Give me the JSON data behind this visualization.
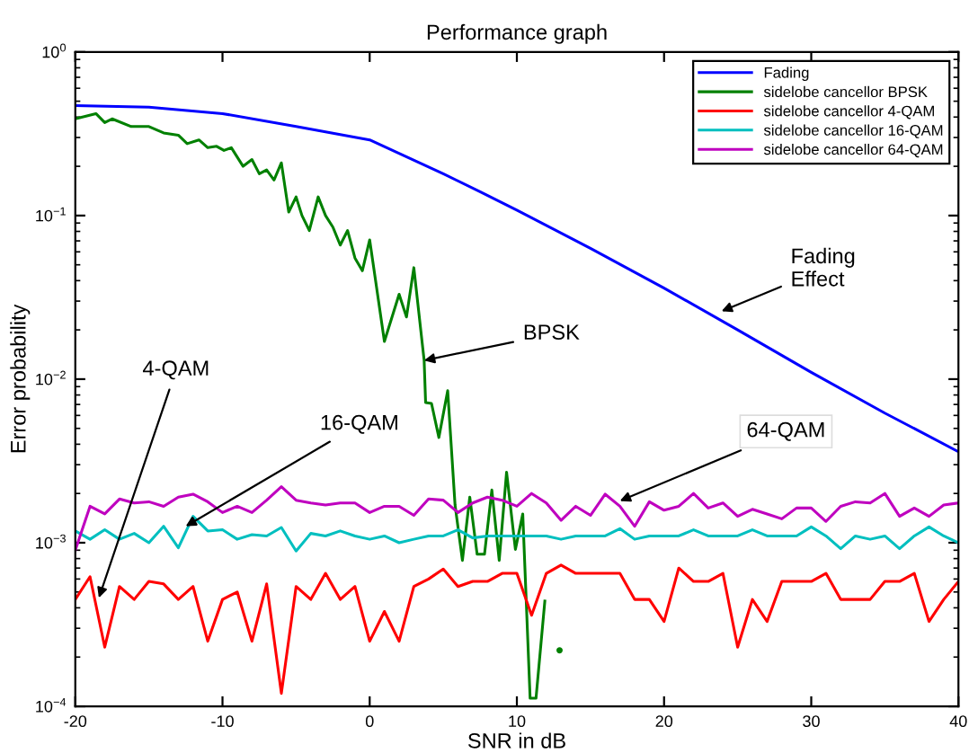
{
  "chart_data": {
    "type": "line",
    "title": "Performance graph",
    "xlabel": "SNR in dB",
    "ylabel": "Error probability",
    "log": "y",
    "grid": false,
    "legend": "top right",
    "line_style": "solid",
    "xlim": [
      -20,
      40
    ],
    "xticks": [
      -20,
      -10,
      0,
      10,
      20,
      30,
      40
    ],
    "ylim": [
      0.0001,
      1
    ],
    "yticks": [
      {
        "value": 0.0001,
        "label": "10$^{−4}$"
      },
      {
        "value": 0.001,
        "label": "10$^{−3}$"
      },
      {
        "value": 0.01,
        "label": "10$^{−2}$"
      },
      {
        "value": 0.1,
        "label": "10$^{−1}$"
      },
      {
        "value": 1,
        "label": "10$^{0}$"
      }
    ],
    "series": [
      {
        "name": "Fading",
        "color": "#0000ff",
        "x": [
          -20,
          -15,
          -10,
          -5,
          0,
          5,
          7.5,
          10,
          15,
          20,
          25,
          30,
          35,
          40
        ],
        "values": [
          0.47,
          0.46,
          0.42,
          0.35,
          0.29,
          0.18,
          0.14,
          0.108,
          0.063,
          0.036,
          0.02,
          0.011,
          0.0062,
          0.0036
        ]
      },
      {
        "name": "sidelobe cancellor BPSK",
        "color": "#008000",
        "x": [
          -20,
          -18.6,
          -18,
          -17.5,
          -16.2,
          -15,
          -14,
          -13,
          -12.4,
          -11.6,
          -11,
          -10.4,
          -9.9,
          -9.4,
          -8.6,
          -8,
          -7.5,
          -7,
          -6.5,
          -6,
          -5.5,
          -5,
          -4.6,
          -4.1,
          -3.5,
          -3,
          -2.5,
          -2,
          -1.5,
          -1,
          -0.5,
          0,
          1,
          2,
          2.5,
          3,
          3.7,
          3.8,
          4.2,
          4.7,
          5.3,
          5.8,
          6.3,
          6.8,
          7.3,
          7.8,
          8.3,
          8.8,
          9.3,
          9.9,
          10.4,
          10.9,
          11.3,
          11.9,
          12.4,
          12.9
        ],
        "values": [
          0.39,
          0.42,
          0.37,
          0.39,
          0.35,
          0.35,
          0.32,
          0.31,
          0.275,
          0.29,
          0.26,
          0.265,
          0.25,
          0.26,
          0.2,
          0.22,
          0.18,
          0.19,
          0.165,
          0.21,
          0.105,
          0.13,
          0.1,
          0.081,
          0.13,
          0.1,
          0.085,
          0.066,
          0.081,
          0.055,
          0.046,
          0.071,
          0.017,
          0.033,
          0.024,
          0.048,
          0.013,
          0.0072,
          0.0071,
          0.0044,
          0.0085,
          0.0017,
          0.00078,
          0.0019,
          0.00085,
          0.00085,
          0.0021,
          0.00078,
          0.0027,
          0.00091,
          0.0015,
          0.000112,
          0.000112,
          0.00044,
          null,
          0.00022
        ]
      },
      {
        "name": "sidelobe cancellor 4-QAM",
        "color": "#ff0000",
        "x": [
          -20,
          -19,
          -18,
          -17,
          -16,
          -15,
          -14,
          -13,
          -12,
          -11,
          -10,
          -9,
          -8,
          -7,
          -6,
          -5,
          -4,
          -3,
          -2,
          -1,
          0,
          1,
          2,
          3,
          4,
          5,
          6,
          7,
          8,
          9,
          10,
          11,
          12,
          13,
          14,
          15,
          16,
          17,
          18,
          19,
          20,
          21,
          22,
          23,
          24,
          25,
          26,
          27,
          28,
          29,
          30,
          31,
          32,
          33,
          34,
          35,
          36,
          37,
          38,
          39,
          40
        ],
        "values": [
          0.00045,
          0.00062,
          0.00023,
          0.00054,
          0.00045,
          0.00058,
          0.00056,
          0.00045,
          0.00054,
          0.00025,
          0.00045,
          0.0005,
          0.00025,
          0.00056,
          0.00012,
          0.00054,
          0.00045,
          0.00065,
          0.00045,
          0.00054,
          0.00025,
          0.00038,
          0.00025,
          0.00054,
          0.0006,
          0.00069,
          0.00054,
          0.00058,
          0.00058,
          0.00065,
          0.00065,
          0.00036,
          0.00065,
          0.00073,
          0.00065,
          0.00065,
          0.00065,
          0.00065,
          0.00045,
          0.00045,
          0.00033,
          0.0007,
          0.00058,
          0.00058,
          0.00065,
          0.00023,
          0.00045,
          0.00033,
          0.00058,
          0.00058,
          0.00058,
          0.00065,
          0.00045,
          0.00045,
          0.00045,
          0.00058,
          0.00058,
          0.00065,
          0.00033,
          0.00045,
          0.00058
        ]
      },
      {
        "name": "sidelobe cancellor 16-QAM",
        "color": "#00bfbf",
        "x": [
          -20,
          -19,
          -18,
          -17,
          -16,
          -15,
          -14,
          -13,
          -12,
          -11,
          -10,
          -9,
          -8,
          -7,
          -6,
          -5,
          -4,
          -3,
          -2,
          -1,
          0,
          1,
          2,
          3,
          4,
          5,
          6,
          7,
          8,
          9,
          10,
          11,
          12,
          13,
          14,
          15,
          16,
          17,
          18,
          19,
          20,
          21,
          22,
          23,
          24,
          25,
          26,
          27,
          28,
          29,
          30,
          31,
          32,
          33,
          34,
          35,
          36,
          37,
          38,
          39,
          40
        ],
        "values": [
          0.00118,
          0.00105,
          0.0012,
          0.00105,
          0.00114,
          0.001,
          0.00126,
          0.00093,
          0.00145,
          0.00118,
          0.0012,
          0.00105,
          0.00112,
          0.0011,
          0.00124,
          0.00089,
          0.00114,
          0.0011,
          0.00118,
          0.0011,
          0.00105,
          0.0011,
          0.001,
          0.00105,
          0.0011,
          0.0011,
          0.0012,
          0.00107,
          0.0011,
          0.0011,
          0.0011,
          0.0011,
          0.0011,
          0.00105,
          0.0011,
          0.0011,
          0.0011,
          0.00122,
          0.00105,
          0.0011,
          0.0011,
          0.0011,
          0.0012,
          0.0011,
          0.0011,
          0.0011,
          0.0012,
          0.0011,
          0.0011,
          0.0011,
          0.00125,
          0.0011,
          0.00092,
          0.0011,
          0.00105,
          0.0011,
          0.00092,
          0.0011,
          0.00125,
          0.0011,
          0.001
        ]
      },
      {
        "name": "sidelobe cancellor 64-QAM",
        "color": "#bf00bf",
        "x": [
          -20,
          -19,
          -18,
          -17,
          -16,
          -15,
          -14,
          -13,
          -12,
          -11,
          -10,
          -9,
          -8,
          -7,
          -6,
          -5,
          -4,
          -3,
          -2,
          -1,
          0,
          1,
          2,
          3,
          4,
          5,
          6,
          7,
          8,
          9,
          10,
          11,
          12,
          13,
          14,
          15,
          16,
          17,
          18,
          19,
          20,
          21,
          22,
          23,
          24,
          25,
          26,
          27,
          28,
          29,
          30,
          31,
          32,
          33,
          34,
          35,
          36,
          37,
          38,
          39,
          40
        ],
        "values": [
          0.0009,
          0.00167,
          0.0015,
          0.00185,
          0.00175,
          0.00178,
          0.00167,
          0.0019,
          0.00198,
          0.00178,
          0.00153,
          0.00167,
          0.00153,
          0.00182,
          0.0022,
          0.00182,
          0.00175,
          0.0017,
          0.00175,
          0.00175,
          0.00153,
          0.00167,
          0.00167,
          0.00147,
          0.00185,
          0.00182,
          0.00153,
          0.00175,
          0.0019,
          0.00182,
          0.00167,
          0.002,
          0.00175,
          0.00137,
          0.00167,
          0.00147,
          0.00198,
          0.00167,
          0.00126,
          0.00178,
          0.00158,
          0.00167,
          0.002,
          0.00163,
          0.00175,
          0.00145,
          0.0016,
          0.0015,
          0.0014,
          0.00163,
          0.00163,
          0.00135,
          0.00167,
          0.00178,
          0.00175,
          0.002,
          0.00145,
          0.00163,
          0.00145,
          0.0017,
          0.00175
        ]
      }
    ],
    "annotations": [
      {
        "text": "Fading\nEffect",
        "x": 23.9,
        "y": 0.026
      },
      {
        "text": "BPSK",
        "x": 3.7,
        "y": 0.013
      },
      {
        "text": "4-QAM",
        "x": -18.4,
        "y": 0.00046
      },
      {
        "text": "16-QAM",
        "x": -12.5,
        "y": 0.00126
      },
      {
        "text": "64-QAM",
        "x": 17.0,
        "y": 0.0018
      }
    ]
  }
}
